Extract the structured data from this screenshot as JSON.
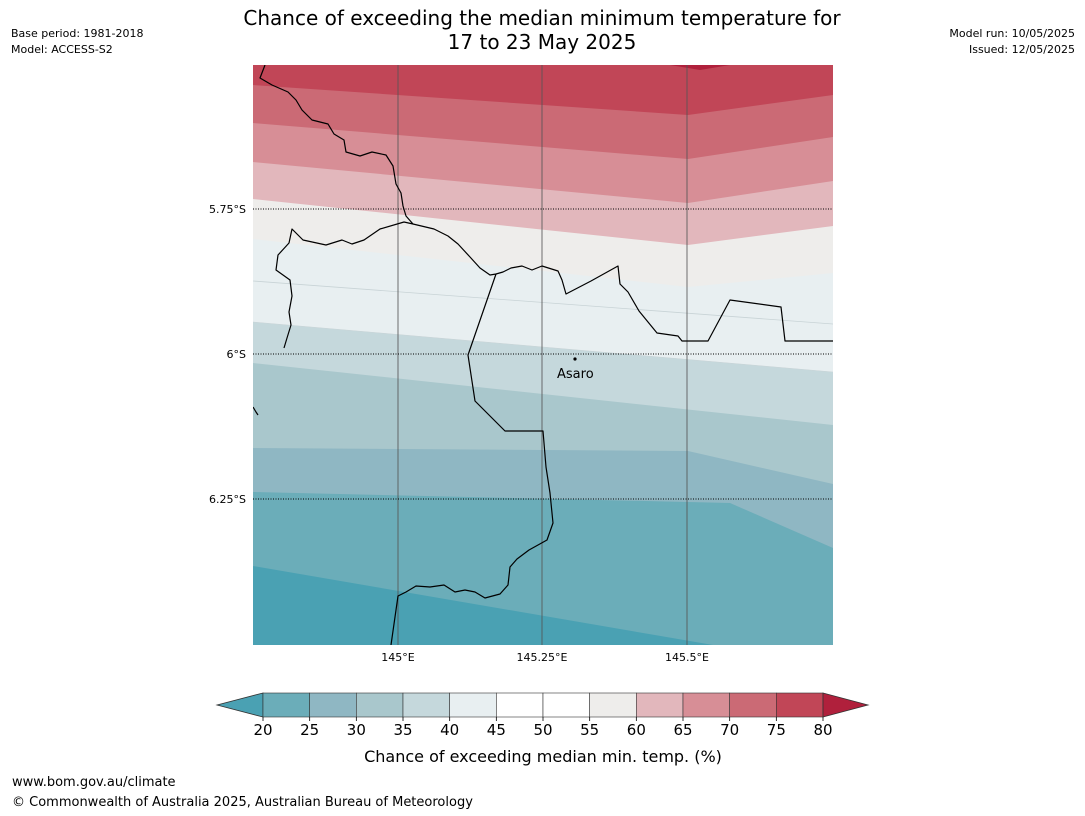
{
  "header": {
    "base_period": "Base period: 1981-2018",
    "model": "Model: ACCESS-S2",
    "model_run": "Model run: 10/05/2025",
    "issued": "Issued: 12/05/2025",
    "title_line1": "Chance of exceeding the median minimum temperature for",
    "title_line2": "17 to 23 May 2025"
  },
  "map": {
    "lat_labels": [
      "5.75°S",
      "6°S",
      "6.25°S"
    ],
    "lon_labels": [
      "145°E",
      "145.25°E",
      "145.5°E"
    ],
    "place": {
      "name": "Asaro"
    }
  },
  "colorbar": {
    "ticks": [
      "20",
      "25",
      "30",
      "35",
      "40",
      "45",
      "50",
      "55",
      "60",
      "65",
      "70",
      "75",
      "80"
    ],
    "label": "Chance of exceeding median min. temp. (%)",
    "colors": {
      "below_20": "#4aa1b3",
      "20_25": "#6badb9",
      "25_30": "#8fb7c3",
      "30_35": "#a9c7cc",
      "35_40": "#c5d8dc",
      "40_45": "#e8eff1",
      "45_50": "#ffffff",
      "50_55": "#ffffff",
      "55_60": "#eeedeb",
      "60_65": "#e2b7bc",
      "65_70": "#d78e96",
      "70_75": "#cb6a75",
      "75_80": "#c14657",
      "above_80": "#b0203c"
    }
  },
  "footer": {
    "url": "www.bom.gov.au/climate",
    "copyright": "© Commonwealth of Australia 2025, Australian Bureau of Meteorology"
  }
}
